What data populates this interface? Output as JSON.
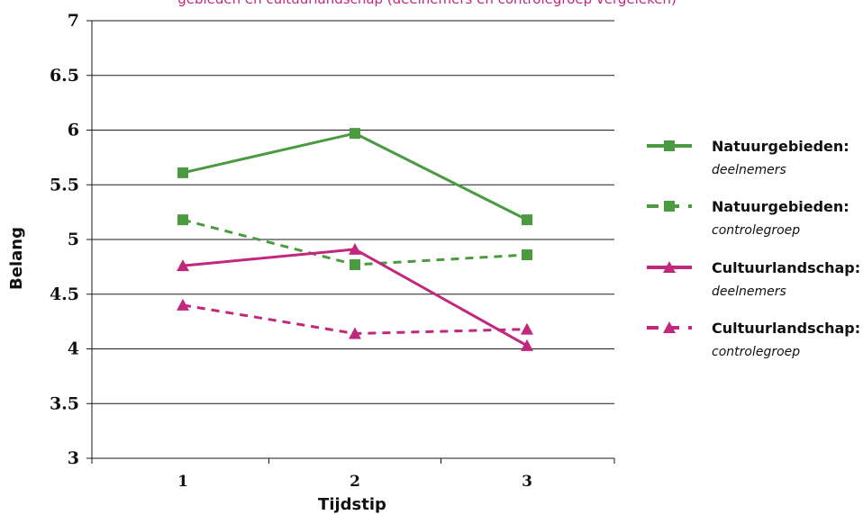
{
  "chart_data": {
    "type": "line",
    "title": "gebieden en cultuurlandschap (deelnemers en controlegroep vergeleken)",
    "xlabel": "Tijdstip",
    "ylabel": "Belang",
    "categories": [
      "1",
      "2",
      "3"
    ],
    "ylim": [
      3,
      7
    ],
    "yticks": [
      "3",
      "3.5",
      "4",
      "4.5",
      "5",
      "5.5",
      "6",
      "6.5",
      "7"
    ],
    "grid": true,
    "legend_position": "right",
    "series": [
      {
        "name": "Natuurgebieden:",
        "subtitle": "deelnemers",
        "values": [
          5.61,
          5.97,
          5.18
        ],
        "color": "#4a9a3f",
        "dash": "solid",
        "marker": "square"
      },
      {
        "name": "Natuurgebieden:",
        "subtitle": "controlegroep",
        "values": [
          5.18,
          4.77,
          4.86
        ],
        "color": "#4a9a3f",
        "dash": "dashed",
        "marker": "square"
      },
      {
        "name": "Cultuurlandschap:",
        "subtitle": "deelnemers",
        "values": [
          4.76,
          4.91,
          4.03
        ],
        "color": "#c2277e",
        "dash": "solid",
        "marker": "triangle"
      },
      {
        "name": "Cultuurlandschap:",
        "subtitle": "controlegroep",
        "values": [
          4.4,
          4.14,
          4.18
        ],
        "color": "#c2277e",
        "dash": "dashed",
        "marker": "triangle"
      }
    ]
  }
}
